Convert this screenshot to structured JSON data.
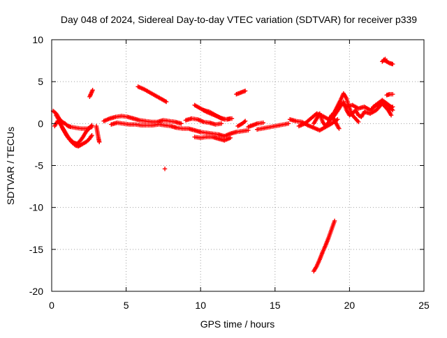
{
  "chart_data": {
    "type": "scatter",
    "title": "Day 048 of 2024, Sidereal Day-to-day VTEC variation (SDTVAR) for receiver p339",
    "xlabel": "GPS time / hours",
    "ylabel": "SDTVAR / TECUs",
    "xlim": [
      0,
      25
    ],
    "ylim": [
      -20,
      10
    ],
    "xticks": [
      0,
      5,
      10,
      15,
      20,
      25
    ],
    "yticks": [
      10,
      5,
      0,
      -5,
      -10,
      -15,
      -20
    ],
    "grid": true,
    "marker": "plus",
    "color": "#ff0000",
    "series": [
      {
        "name": "SDTVAR",
        "segments": [
          [
            [
              0.1,
              1.5
            ],
            [
              0.3,
              1.2
            ],
            [
              0.5,
              0.6
            ],
            [
              0.7,
              0.2
            ],
            [
              0.9,
              0.0
            ],
            [
              1.1,
              -0.3
            ],
            [
              1.3,
              -0.4
            ],
            [
              1.6,
              -0.5
            ],
            [
              2.0,
              -0.6
            ],
            [
              2.4,
              -0.6
            ],
            [
              2.7,
              -0.4
            ]
          ],
          [
            [
              0.2,
              -0.3
            ],
            [
              0.4,
              0.3
            ],
            [
              0.6,
              -0.1
            ],
            [
              0.8,
              -0.8
            ],
            [
              1.0,
              -1.4
            ],
            [
              1.2,
              -1.9
            ],
            [
              1.4,
              -2.3
            ],
            [
              1.6,
              -2.6
            ],
            [
              1.8,
              -2.7
            ],
            [
              2.0,
              -2.5
            ],
            [
              2.3,
              -2.2
            ],
            [
              2.5,
              -1.9
            ],
            [
              2.7,
              -1.4
            ]
          ],
          [
            [
              0.3,
              1.0
            ],
            [
              0.5,
              0.4
            ],
            [
              0.7,
              -0.4
            ],
            [
              0.9,
              -1.0
            ],
            [
              1.1,
              -1.6
            ],
            [
              1.3,
              -2.0
            ],
            [
              1.5,
              -2.3
            ],
            [
              1.7,
              -2.4
            ],
            [
              1.9,
              -2.1
            ],
            [
              2.1,
              -1.6
            ],
            [
              2.3,
              -1.0
            ],
            [
              2.5,
              -0.6
            ],
            [
              2.7,
              -0.2
            ]
          ],
          [
            [
              2.55,
              3.2
            ],
            [
              2.65,
              3.6
            ],
            [
              2.75,
              4.0
            ]
          ],
          [
            [
              3.0,
              -0.3
            ],
            [
              3.05,
              -0.8
            ],
            [
              3.1,
              -1.3
            ],
            [
              3.15,
              -1.8
            ],
            [
              3.2,
              -2.2
            ]
          ],
          [
            [
              3.5,
              0.3
            ],
            [
              3.9,
              0.6
            ],
            [
              4.3,
              0.8
            ],
            [
              4.7,
              0.9
            ],
            [
              5.1,
              0.8
            ],
            [
              5.5,
              0.6
            ],
            [
              5.9,
              0.4
            ],
            [
              6.3,
              0.3
            ],
            [
              6.7,
              0.2
            ],
            [
              7.1,
              0.2
            ],
            [
              7.5,
              0.4
            ],
            [
              7.9,
              0.3
            ],
            [
              8.3,
              0.2
            ],
            [
              8.7,
              0.0
            ]
          ],
          [
            [
              4.0,
              -0.1
            ],
            [
              4.4,
              0.1
            ],
            [
              4.8,
              0.0
            ],
            [
              5.2,
              -0.1
            ],
            [
              5.6,
              -0.1
            ],
            [
              6.0,
              -0.2
            ],
            [
              6.4,
              -0.2
            ],
            [
              6.8,
              -0.2
            ],
            [
              7.2,
              -0.1
            ],
            [
              7.6,
              -0.2
            ],
            [
              8.0,
              -0.3
            ],
            [
              8.4,
              -0.5
            ],
            [
              8.8,
              -0.6
            ],
            [
              9.2,
              -0.6
            ],
            [
              9.6,
              -0.8
            ],
            [
              10.0,
              -1.0
            ],
            [
              10.4,
              -1.1
            ],
            [
              10.8,
              -1.2
            ],
            [
              11.2,
              -1.3
            ],
            [
              11.6,
              -1.5
            ],
            [
              12.0,
              -1.2
            ],
            [
              12.4,
              -1.0
            ],
            [
              12.8,
              -0.9
            ],
            [
              13.2,
              -0.8
            ]
          ],
          [
            [
              5.8,
              4.4
            ],
            [
              6.2,
              4.1
            ],
            [
              6.6,
              3.7
            ],
            [
              7.0,
              3.3
            ],
            [
              7.4,
              2.9
            ],
            [
              7.7,
              2.6
            ]
          ],
          [
            [
              7.6,
              -5.4
            ]
          ],
          [
            [
              9.0,
              0.4
            ],
            [
              9.4,
              0.6
            ],
            [
              9.8,
              0.5
            ],
            [
              10.2,
              0.2
            ],
            [
              10.6,
              0.1
            ],
            [
              11.0,
              -0.1
            ],
            [
              11.4,
              0.0
            ]
          ],
          [
            [
              9.6,
              -1.6
            ],
            [
              10.0,
              -1.7
            ],
            [
              10.4,
              -1.6
            ],
            [
              10.8,
              -1.6
            ],
            [
              11.2,
              -1.8
            ],
            [
              11.6,
              -2.0
            ],
            [
              12.0,
              -1.7
            ]
          ],
          [
            [
              10.2,
              1.6
            ],
            [
              10.6,
              1.4
            ],
            [
              11.0,
              1.0
            ],
            [
              11.4,
              0.6
            ],
            [
              11.8,
              0.5
            ],
            [
              12.0,
              0.6
            ]
          ],
          [
            [
              9.6,
              2.2
            ],
            [
              10.0,
              1.8
            ],
            [
              10.4,
              1.4
            ],
            [
              10.8,
              1.1
            ],
            [
              11.2,
              0.8
            ],
            [
              11.6,
              0.5
            ],
            [
              12.1,
              0.6
            ]
          ],
          [
            [
              12.4,
              3.5
            ],
            [
              12.7,
              3.7
            ],
            [
              13.0,
              3.9
            ]
          ],
          [
            [
              12.5,
              -0.3
            ],
            [
              12.8,
              0.0
            ],
            [
              13.0,
              0.3
            ]
          ],
          [
            [
              13.8,
              -0.7
            ],
            [
              14.1,
              -0.6
            ],
            [
              14.4,
              -0.5
            ],
            [
              14.7,
              -0.4
            ],
            [
              15.0,
              -0.3
            ],
            [
              15.3,
              -0.2
            ],
            [
              15.6,
              -0.1
            ],
            [
              15.9,
              0.0
            ]
          ],
          [
            [
              13.2,
              -0.4
            ],
            [
              13.5,
              -0.2
            ],
            [
              13.8,
              0.0
            ],
            [
              14.2,
              0.1
            ]
          ],
          [
            [
              16.0,
              0.5
            ],
            [
              16.4,
              0.3
            ],
            [
              16.8,
              0.2
            ],
            [
              17.2,
              -0.2
            ],
            [
              17.6,
              -0.5
            ],
            [
              18.0,
              -0.8
            ],
            [
              18.4,
              -0.4
            ],
            [
              18.8,
              0.0
            ],
            [
              19.2,
              0.5
            ]
          ],
          [
            [
              16.6,
              -0.3
            ],
            [
              17.0,
              0.0
            ],
            [
              17.4,
              0.6
            ],
            [
              17.8,
              1.2
            ],
            [
              18.2,
              0.9
            ],
            [
              18.6,
              0.5
            ],
            [
              19.0,
              1.4
            ],
            [
              19.4,
              2.8
            ],
            [
              19.6,
              3.6
            ],
            [
              19.8,
              3.0
            ],
            [
              20.0,
              1.8
            ],
            [
              20.2,
              1.0
            ],
            [
              20.4,
              0.6
            ],
            [
              20.6,
              0.2
            ]
          ],
          [
            [
              17.6,
              -17.6
            ],
            [
              17.8,
              -17.0
            ],
            [
              18.0,
              -16.2
            ],
            [
              18.2,
              -15.3
            ],
            [
              18.4,
              -14.5
            ],
            [
              18.6,
              -13.6
            ],
            [
              18.8,
              -12.6
            ],
            [
              19.0,
              -11.6
            ]
          ],
          [
            [
              17.6,
              0.0
            ],
            [
              17.8,
              0.6
            ],
            [
              18.0,
              1.2
            ],
            [
              18.2,
              0.2
            ],
            [
              18.4,
              -0.3
            ],
            [
              18.7,
              0.4
            ],
            [
              19.0,
              1.0
            ],
            [
              19.3,
              1.8
            ],
            [
              19.5,
              2.4
            ],
            [
              19.8,
              2.0
            ],
            [
              20.2,
              2.2
            ],
            [
              20.6,
              1.8
            ],
            [
              21.0,
              2.0
            ],
            [
              21.4,
              1.6
            ],
            [
              21.8,
              2.2
            ],
            [
              22.2,
              2.6
            ],
            [
              22.6,
              2.2
            ],
            [
              22.9,
              1.6
            ]
          ],
          [
            [
              18.8,
              1.0
            ],
            [
              19.0,
              0.4
            ],
            [
              19.2,
              -0.3
            ],
            [
              19.3,
              -0.6
            ]
          ],
          [
            [
              19.6,
              2.6
            ],
            [
              19.8,
              1.6
            ],
            [
              20.0,
              1.0
            ],
            [
              20.2,
              1.2
            ],
            [
              20.4,
              1.6
            ],
            [
              20.6,
              1.0
            ],
            [
              20.8,
              0.8
            ],
            [
              21.0,
              1.4
            ],
            [
              21.4,
              1.2
            ],
            [
              21.8,
              1.6
            ],
            [
              22.2,
              2.4
            ],
            [
              22.6,
              1.6
            ],
            [
              22.8,
              1.0
            ]
          ],
          [
            [
              21.6,
              2.0
            ],
            [
              21.9,
              2.4
            ],
            [
              22.2,
              2.8
            ],
            [
              22.5,
              2.4
            ],
            [
              22.8,
              2.0
            ]
          ],
          [
            [
              22.3,
              7.6
            ],
            [
              22.5,
              7.4
            ],
            [
              22.7,
              7.2
            ],
            [
              22.9,
              7.1
            ]
          ],
          [
            [
              22.2,
              7.4
            ],
            [
              22.4,
              7.7
            ]
          ],
          [
            [
              22.5,
              3.4
            ],
            [
              22.7,
              3.5
            ],
            [
              22.9,
              3.5
            ]
          ],
          [
            [
              22.7,
              1.8
            ],
            [
              22.9,
              2.0
            ]
          ]
        ]
      }
    ]
  }
}
